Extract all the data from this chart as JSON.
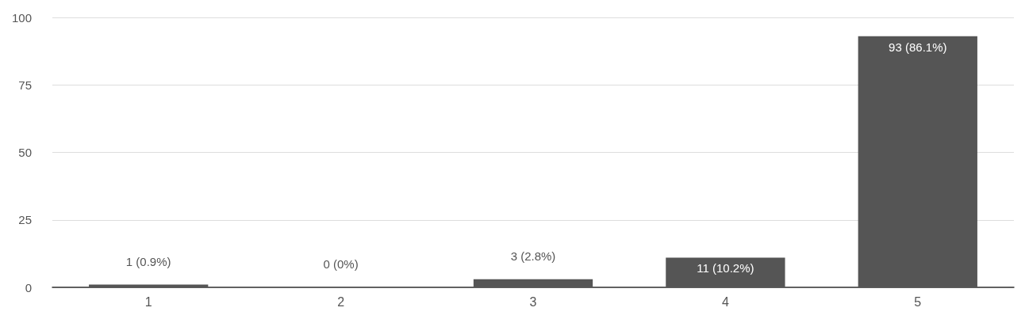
{
  "chart_data": {
    "type": "bar",
    "categories": [
      "1",
      "2",
      "3",
      "4",
      "5"
    ],
    "values": [
      1,
      0,
      3,
      11,
      93
    ],
    "color": "#555555",
    "value_labels": [
      "1 (0.9%)",
      "0 (0%)",
      "3 (2.8%)",
      "11 (10.2%)",
      "93 (86.1%)"
    ],
    "ylim": [
      0,
      100
    ],
    "yticks": [
      0,
      25,
      50,
      75,
      100
    ],
    "grid": "y"
  }
}
